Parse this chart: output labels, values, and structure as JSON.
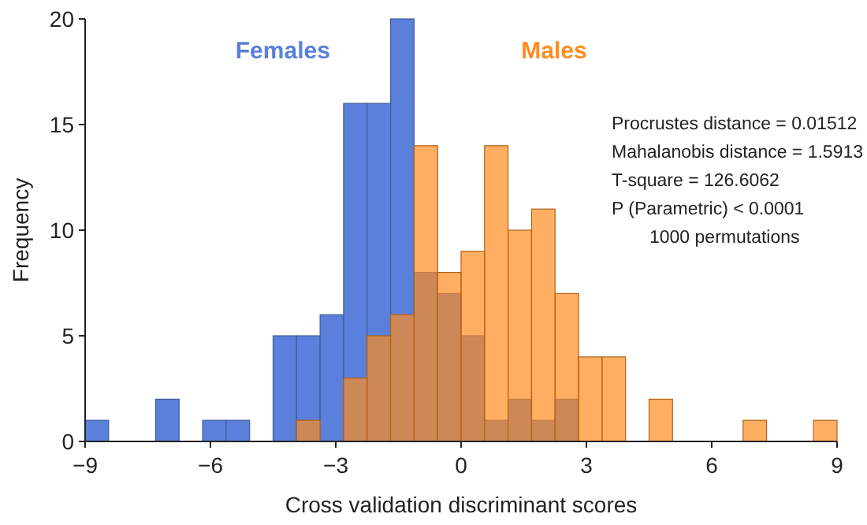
{
  "chart_data": {
    "type": "histogram",
    "xlabel": "Cross validation discriminant scores",
    "ylabel": "Frequency",
    "bins": [
      -9,
      -8.4375,
      -7.875,
      -7.3125,
      -6.75,
      -6.1875,
      -5.625,
      -5.0625,
      -4.5,
      -3.9375,
      -3.375,
      -2.8125,
      -2.25,
      -1.6875,
      -1.125,
      -0.5625,
      0,
      0.5625,
      1.125,
      1.6875,
      2.25,
      2.8125,
      3.375,
      3.9375,
      4.5,
      5.0625,
      5.625,
      6.1875,
      6.75,
      7.3125,
      7.875,
      8.4375,
      9
    ],
    "series": [
      {
        "name": "Females",
        "color": "#5b80db",
        "values": [
          1,
          0,
          0,
          2,
          0,
          1,
          1,
          0,
          5,
          5,
          6,
          16,
          16,
          20,
          8,
          7,
          5,
          1,
          2,
          1,
          2,
          0,
          0,
          0,
          0,
          0,
          0,
          0,
          0,
          0,
          0,
          0
        ]
      },
      {
        "name": "Males",
        "color": "#ff8c1f",
        "values": [
          0,
          0,
          0,
          0,
          0,
          0,
          0,
          0,
          0,
          1,
          0,
          3,
          5,
          6,
          14,
          8,
          9,
          14,
          10,
          11,
          7,
          4,
          4,
          0,
          2,
          0,
          0,
          0,
          1,
          0,
          0,
          1
        ]
      }
    ],
    "xlim": [
      -9,
      9
    ],
    "ylim": [
      0,
      20
    ],
    "xticks": [
      {
        "value": -9,
        "label": "−9"
      },
      {
        "value": -6,
        "label": "−6"
      },
      {
        "value": -3,
        "label": "−3"
      },
      0,
      3,
      6,
      9
    ],
    "yticks": [
      0,
      5,
      10,
      15,
      20
    ],
    "legend": "top",
    "grid": false,
    "annotations": [
      "Procrustes distance = 0.01512",
      "Mahalanobis distance = 1.5913",
      "T-square = 126.6062",
      "P (Parametric) < 0.0001",
      "1000 permutations"
    ]
  }
}
